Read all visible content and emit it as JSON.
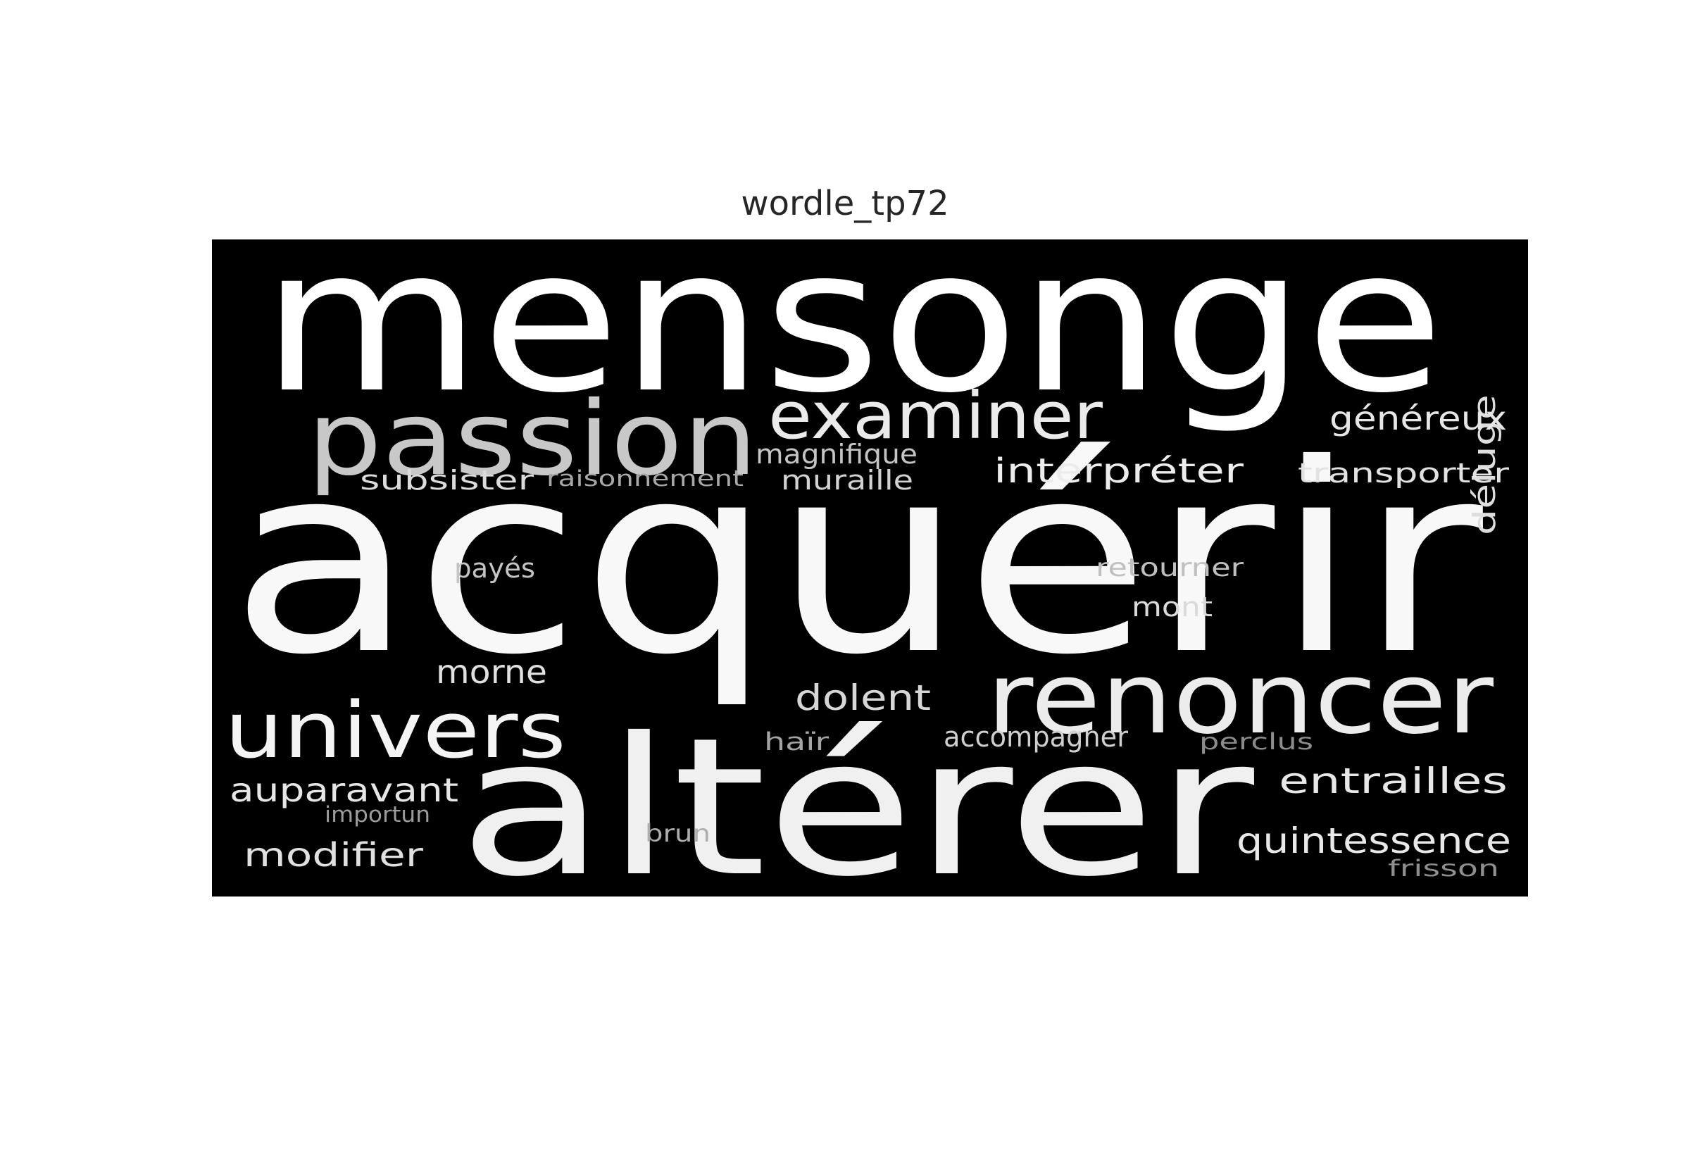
{
  "title": "wordle_tp72",
  "background_color": "#000000",
  "words": [
    {
      "text": "mensonge",
      "color": "#ffffff"
    },
    {
      "text": "acquérir",
      "color": "#f8f8f8"
    },
    {
      "text": "altérer",
      "color": "#f0f0f0"
    },
    {
      "text": "passion",
      "color": "#c8c8c8"
    },
    {
      "text": "examiner",
      "color": "#ebebeb"
    },
    {
      "text": "renoncer",
      "color": "#ececec"
    },
    {
      "text": "univers",
      "color": "#f4f4f4"
    },
    {
      "text": "déluge",
      "color": "#dddddd"
    },
    {
      "text": "généreux",
      "color": "#e6e6e6"
    },
    {
      "text": "interpréter",
      "color": "#ececec"
    },
    {
      "text": "transporter",
      "color": "#e2e2e2"
    },
    {
      "text": "magnifique",
      "color": "#c4c4c4"
    },
    {
      "text": "muraille",
      "color": "#d2d2d2"
    },
    {
      "text": "subsister",
      "color": "#dcdcdc"
    },
    {
      "text": "raisonnement",
      "color": "#a8a8a8"
    },
    {
      "text": "payés",
      "color": "#c4c4c4"
    },
    {
      "text": "retourner",
      "color": "#c0c0c0"
    },
    {
      "text": "mont",
      "color": "#dadada"
    },
    {
      "text": "morne",
      "color": "#e0e0e0"
    },
    {
      "text": "dolent",
      "color": "#d6d6d6"
    },
    {
      "text": "haïr",
      "color": "#a4a4a4"
    },
    {
      "text": "accompagner",
      "color": "#cfcfcf"
    },
    {
      "text": "perclus",
      "color": "#8c8c8c"
    },
    {
      "text": "auparavant",
      "color": "#e6e6e6"
    },
    {
      "text": "importun",
      "color": "#9c9c9c"
    },
    {
      "text": "entrailles",
      "color": "#e8e8e8"
    },
    {
      "text": "quintessence",
      "color": "#e8e8e8"
    },
    {
      "text": "frisson",
      "color": "#8e8e8e"
    },
    {
      "text": "modifier",
      "color": "#e0e0e0"
    },
    {
      "text": "brun",
      "color": "#aeaeae"
    }
  ]
}
